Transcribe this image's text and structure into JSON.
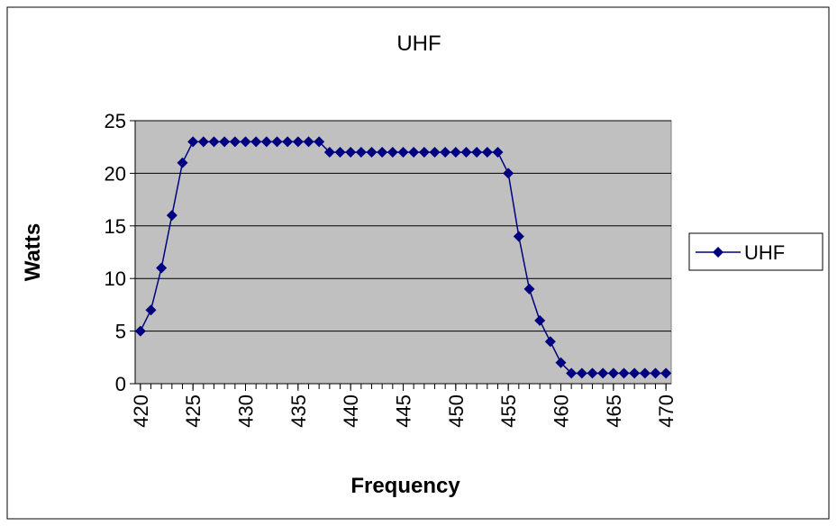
{
  "chart_data": {
    "type": "line",
    "title": "UHF",
    "x_label": "Frequency",
    "y_label": "Watts",
    "x": [
      420,
      421,
      422,
      423,
      424,
      425,
      426,
      427,
      428,
      429,
      430,
      431,
      432,
      433,
      434,
      435,
      436,
      437,
      438,
      439,
      440,
      441,
      442,
      443,
      444,
      445,
      446,
      447,
      448,
      449,
      450,
      451,
      452,
      453,
      454,
      455,
      456,
      457,
      458,
      459,
      460,
      461,
      462,
      463,
      464,
      465,
      466,
      467,
      468,
      469,
      470
    ],
    "series": [
      {
        "name": "UHF",
        "color": "#000080",
        "values": [
          5,
          7,
          11,
          16,
          21,
          23,
          23,
          23,
          23,
          23,
          23,
          23,
          23,
          23,
          23,
          23,
          23,
          23,
          22,
          22,
          22,
          22,
          22,
          22,
          22,
          22,
          22,
          22,
          22,
          22,
          22,
          22,
          22,
          22,
          22,
          20,
          14,
          9,
          6,
          4,
          2,
          1,
          1,
          1,
          1,
          1,
          1,
          1,
          1,
          1,
          1
        ]
      }
    ],
    "xlim": [
      419.5,
      470.5
    ],
    "xticks": [
      420,
      425,
      430,
      435,
      440,
      445,
      450,
      455,
      460,
      465,
      470
    ],
    "ylim": [
      0,
      25
    ],
    "yticks": [
      0,
      5,
      10,
      15,
      20,
      25
    ],
    "grid": true,
    "legend": "right",
    "plot_background": "#c0c0c0"
  }
}
